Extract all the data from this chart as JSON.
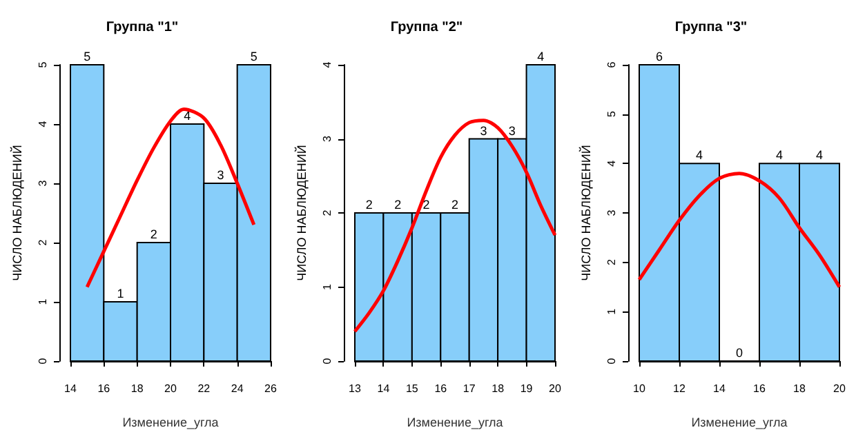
{
  "chart_data": [
    {
      "type": "histogram",
      "title": "Группа \"1\"",
      "xlabel": "Изменение_угла",
      "ylabel": "ЧИСЛО НАБЛЮДЕНИЙ",
      "bins": [
        14,
        16,
        18,
        20,
        22,
        24,
        26
      ],
      "xlim": [
        14,
        26
      ],
      "xticks": [
        14,
        16,
        18,
        20,
        22,
        24,
        26
      ],
      "ylim": [
        0,
        5
      ],
      "yticks": [
        0,
        1,
        2,
        3,
        4,
        5
      ],
      "grid": false,
      "series": [
        {
          "color": "#87cefa",
          "values": [
            5,
            1,
            2,
            4,
            3,
            5
          ],
          "value_labels": [
            "5",
            "1",
            "2",
            "4",
            "3",
            "5"
          ]
        },
        {
          "type": "line",
          "color": "#ff0000",
          "x": [
            15,
            16,
            17,
            18,
            19,
            20,
            20.8,
            22,
            23,
            24,
            25
          ],
          "values": [
            1.25,
            1.85,
            2.45,
            3.05,
            3.6,
            4.05,
            4.25,
            4.1,
            3.65,
            3.0,
            2.3
          ]
        }
      ]
    },
    {
      "type": "histogram",
      "title": "Группа \"2\"",
      "xlabel": "Изменение_угла",
      "ylabel": "ЧИСЛО НАБЛЮДЕНИЙ",
      "bins": [
        13,
        14,
        15,
        16,
        17,
        18,
        19,
        20
      ],
      "xlim": [
        13,
        20
      ],
      "xticks": [
        13,
        14,
        15,
        16,
        17,
        18,
        19,
        20
      ],
      "ylim": [
        0,
        4
      ],
      "yticks": [
        0,
        1,
        2,
        3,
        4
      ],
      "grid": false,
      "series": [
        {
          "color": "#87cefa",
          "values": [
            2,
            2,
            2,
            2,
            3,
            3,
            4
          ],
          "value_labels": [
            "2",
            "2",
            "2",
            "2",
            "3",
            "3",
            "4"
          ]
        },
        {
          "type": "line",
          "color": "#ff0000",
          "x": [
            13,
            13.5,
            14,
            14.5,
            15,
            15.5,
            16,
            16.5,
            17,
            17.5,
            18,
            18.5,
            19,
            19.5,
            20
          ],
          "values": [
            0.4,
            0.65,
            0.95,
            1.35,
            1.8,
            2.3,
            2.75,
            3.05,
            3.22,
            3.25,
            3.15,
            2.9,
            2.55,
            2.1,
            1.7
          ]
        }
      ]
    },
    {
      "type": "histogram",
      "title": "Группа \"3\"",
      "xlabel": "Изменение_угла",
      "ylabel": "ЧИСЛО НАБЛЮДЕНИЙ",
      "bins": [
        10,
        12,
        14,
        16,
        18,
        20
      ],
      "xlim": [
        10,
        20
      ],
      "xticks": [
        10,
        12,
        14,
        16,
        18,
        20
      ],
      "ylim": [
        0,
        6
      ],
      "yticks": [
        0,
        1,
        2,
        3,
        4,
        5,
        6
      ],
      "grid": false,
      "series": [
        {
          "color": "#87cefa",
          "values": [
            6,
            4,
            0,
            4,
            4
          ],
          "value_labels": [
            "6",
            "4",
            "0",
            "4",
            "4"
          ]
        },
        {
          "type": "line",
          "color": "#ff0000",
          "x": [
            10,
            11,
            12,
            13,
            14,
            15,
            16,
            17,
            18,
            19,
            20
          ],
          "values": [
            1.65,
            2.25,
            2.85,
            3.35,
            3.7,
            3.8,
            3.65,
            3.3,
            2.7,
            2.15,
            1.5
          ]
        }
      ]
    }
  ]
}
